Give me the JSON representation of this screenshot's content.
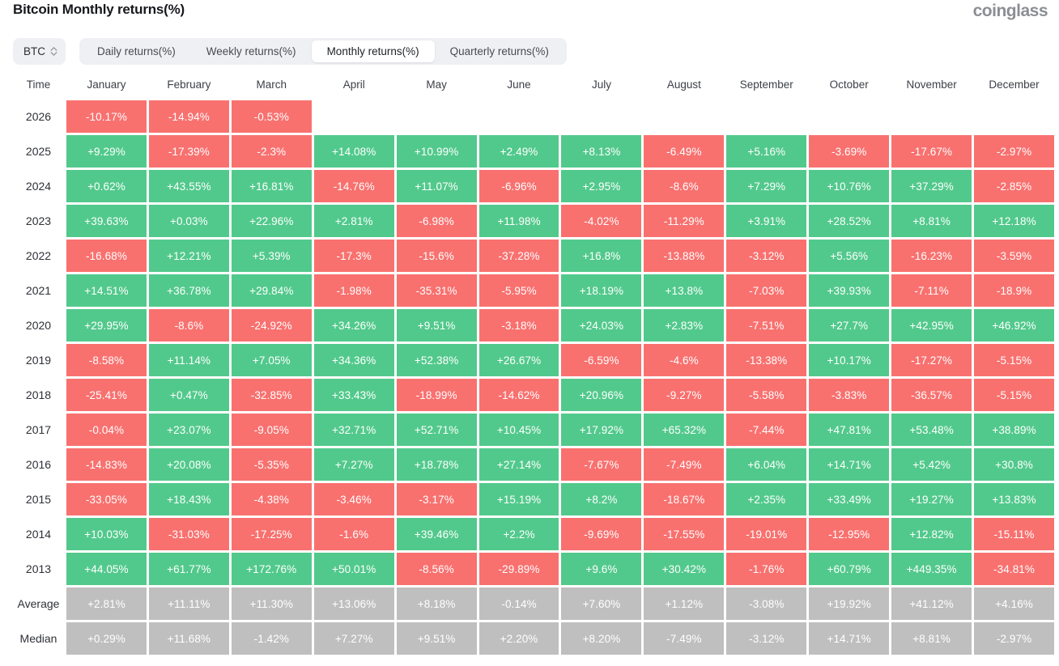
{
  "header": {
    "title": "Bitcoin Monthly returns(%)",
    "logo_text": "coinglass"
  },
  "controls": {
    "coin_selector": {
      "label": "BTC",
      "icon": "sort-updown-icon"
    },
    "tabs": [
      {
        "label": "Daily returns(%)",
        "selected": false
      },
      {
        "label": "Weekly returns(%)",
        "selected": false
      },
      {
        "label": "Monthly returns(%)",
        "selected": true
      },
      {
        "label": "Quarterly returns(%)",
        "selected": false
      }
    ]
  },
  "colors": {
    "positive": "#52c98c",
    "negative": "#f8716f",
    "summary": "#bfbfbf",
    "cell_text": "#ffffff"
  },
  "table": {
    "columns": [
      "Time",
      "January",
      "February",
      "March",
      "April",
      "May",
      "June",
      "July",
      "August",
      "September",
      "October",
      "November",
      "December"
    ],
    "rows": [
      {
        "label": "2026",
        "style": "default",
        "values": [
          "-10.17%",
          "-14.94%",
          "-0.53%",
          "",
          "",
          "",
          "",
          "",
          "",
          "",
          "",
          ""
        ]
      },
      {
        "label": "2025",
        "style": "default",
        "values": [
          "+9.29%",
          "-17.39%",
          "-2.3%",
          "+14.08%",
          "+10.99%",
          "+2.49%",
          "+8.13%",
          "-6.49%",
          "+5.16%",
          "-3.69%",
          "-17.67%",
          "-2.97%"
        ]
      },
      {
        "label": "2024",
        "style": "default",
        "values": [
          "+0.62%",
          "+43.55%",
          "+16.81%",
          "-14.76%",
          "+11.07%",
          "-6.96%",
          "+2.95%",
          "-8.6%",
          "+7.29%",
          "+10.76%",
          "+37.29%",
          "-2.85%"
        ]
      },
      {
        "label": "2023",
        "style": "default",
        "values": [
          "+39.63%",
          "+0.03%",
          "+22.96%",
          "+2.81%",
          "-6.98%",
          "+11.98%",
          "-4.02%",
          "-11.29%",
          "+3.91%",
          "+28.52%",
          "+8.81%",
          "+12.18%"
        ]
      },
      {
        "label": "2022",
        "style": "default",
        "values": [
          "-16.68%",
          "+12.21%",
          "+5.39%",
          "-17.3%",
          "-15.6%",
          "-37.28%",
          "+16.8%",
          "-13.88%",
          "-3.12%",
          "+5.56%",
          "-16.23%",
          "-3.59%"
        ]
      },
      {
        "label": "2021",
        "style": "default",
        "values": [
          "+14.51%",
          "+36.78%",
          "+29.84%",
          "-1.98%",
          "-35.31%",
          "-5.95%",
          "+18.19%",
          "+13.8%",
          "-7.03%",
          "+39.93%",
          "-7.11%",
          "-18.9%"
        ]
      },
      {
        "label": "2020",
        "style": "default",
        "values": [
          "+29.95%",
          "-8.6%",
          "-24.92%",
          "+34.26%",
          "+9.51%",
          "-3.18%",
          "+24.03%",
          "+2.83%",
          "-7.51%",
          "+27.7%",
          "+42.95%",
          "+46.92%"
        ]
      },
      {
        "label": "2019",
        "style": "default",
        "values": [
          "-8.58%",
          "+11.14%",
          "+7.05%",
          "+34.36%",
          "+52.38%",
          "+26.67%",
          "-6.59%",
          "-4.6%",
          "-13.38%",
          "+10.17%",
          "-17.27%",
          "-5.15%"
        ]
      },
      {
        "label": "2018",
        "style": "default",
        "values": [
          "-25.41%",
          "+0.47%",
          "-32.85%",
          "+33.43%",
          "-18.99%",
          "-14.62%",
          "+20.96%",
          "-9.27%",
          "-5.58%",
          "-3.83%",
          "-36.57%",
          "-5.15%"
        ]
      },
      {
        "label": "2017",
        "style": "default",
        "values": [
          "-0.04%",
          "+23.07%",
          "-9.05%",
          "+32.71%",
          "+52.71%",
          "+10.45%",
          "+17.92%",
          "+65.32%",
          "-7.44%",
          "+47.81%",
          "+53.48%",
          "+38.89%"
        ]
      },
      {
        "label": "2016",
        "style": "default",
        "values": [
          "-14.83%",
          "+20.08%",
          "-5.35%",
          "+7.27%",
          "+18.78%",
          "+27.14%",
          "-7.67%",
          "-7.49%",
          "+6.04%",
          "+14.71%",
          "+5.42%",
          "+30.8%"
        ]
      },
      {
        "label": "2015",
        "style": "default",
        "values": [
          "-33.05%",
          "+18.43%",
          "-4.38%",
          "-3.46%",
          "-3.17%",
          "+15.19%",
          "+8.2%",
          "-18.67%",
          "+2.35%",
          "+33.49%",
          "+19.27%",
          "+13.83%"
        ]
      },
      {
        "label": "2014",
        "style": "default",
        "values": [
          "+10.03%",
          "-31.03%",
          "-17.25%",
          "-1.6%",
          "+39.46%",
          "+2.2%",
          "-9.69%",
          "-17.55%",
          "-19.01%",
          "-12.95%",
          "+12.82%",
          "-15.11%"
        ]
      },
      {
        "label": "2013",
        "style": "default",
        "values": [
          "+44.05%",
          "+61.77%",
          "+172.76%",
          "+50.01%",
          "-8.56%",
          "-29.89%",
          "+9.6%",
          "+30.42%",
          "-1.76%",
          "+60.79%",
          "+449.35%",
          "-34.81%"
        ]
      },
      {
        "label": "Average",
        "style": "summary",
        "values": [
          "+2.81%",
          "+11.11%",
          "+11.30%",
          "+13.06%",
          "+8.18%",
          "-0.14%",
          "+7.60%",
          "+1.12%",
          "-3.08%",
          "+19.92%",
          "+41.12%",
          "+4.16%"
        ]
      },
      {
        "label": "Median",
        "style": "summary",
        "values": [
          "+0.29%",
          "+11.68%",
          "-1.42%",
          "+7.27%",
          "+9.51%",
          "+2.20%",
          "+8.20%",
          "-7.49%",
          "-3.12%",
          "+14.71%",
          "+8.81%",
          "-2.97%"
        ]
      }
    ]
  }
}
